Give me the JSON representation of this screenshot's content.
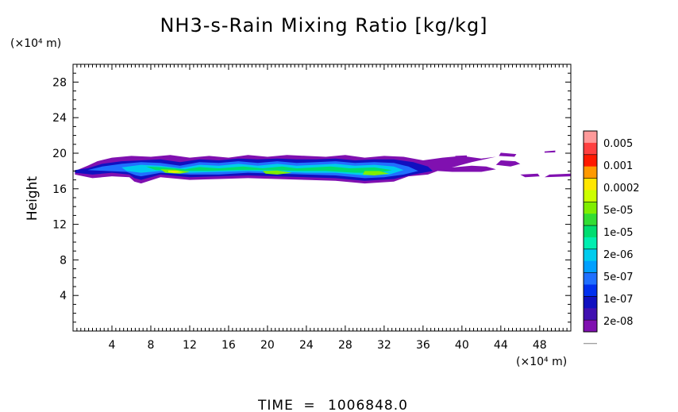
{
  "chart_data": {
    "type": "heatmap",
    "title": "NH3-s-Rain Mixing Ratio [kg/kg]",
    "xlabel": "",
    "ylabel": "Height",
    "x_unit": "(×10⁴ m)",
    "y_unit": "(×10⁴ m)",
    "xlim": [
      0,
      51.2
    ],
    "ylim": [
      0,
      30
    ],
    "x_ticks": [
      4,
      8,
      12,
      16,
      20,
      24,
      28,
      32,
      36,
      40,
      44,
      48
    ],
    "y_ticks": [
      4,
      8,
      12,
      16,
      20,
      24,
      28
    ],
    "grid": false,
    "legend": {
      "placement": "right",
      "labels": [
        "0.005",
        "0.001",
        "0.0002",
        "5e-05",
        "1e-05",
        "2e-06",
        "5e-07",
        "1e-07",
        "2e-08"
      ],
      "colors": [
        "#ff9a9a",
        "#ff4040",
        "#ff1a00",
        "#ff9900",
        "#ffe600",
        "#ccff00",
        "#80ee00",
        "#33dd33",
        "#00dd70",
        "#00eeb0",
        "#00ccee",
        "#00a0ff",
        "#2070ff",
        "#0030ee",
        "#1010c0",
        "#4010b0",
        "#8010b0"
      ]
    },
    "regions": [
      {
        "level": 0,
        "points": [
          [
            0.2,
            18.0
          ],
          [
            1.5,
            18.6
          ],
          [
            2.5,
            19.1
          ],
          [
            4,
            19.5
          ],
          [
            6,
            19.7
          ],
          [
            8,
            19.6
          ],
          [
            10,
            19.8
          ],
          [
            12,
            19.5
          ],
          [
            14,
            19.7
          ],
          [
            16,
            19.5
          ],
          [
            18,
            19.8
          ],
          [
            20,
            19.6
          ],
          [
            22,
            19.8
          ],
          [
            24,
            19.7
          ],
          [
            26,
            19.6
          ],
          [
            28,
            19.8
          ],
          [
            30,
            19.5
          ],
          [
            32,
            19.7
          ],
          [
            34,
            19.6
          ],
          [
            36,
            19.2
          ],
          [
            38,
            19.5
          ],
          [
            40,
            19.7
          ],
          [
            42,
            19.4
          ],
          [
            43.5,
            19.6
          ],
          [
            41,
            19.0
          ],
          [
            39,
            18.4
          ],
          [
            37.5,
            18.0
          ],
          [
            36.5,
            17.6
          ],
          [
            34.5,
            17.4
          ],
          [
            33,
            16.8
          ],
          [
            30,
            16.6
          ],
          [
            27,
            16.9
          ],
          [
            24,
            17.0
          ],
          [
            21,
            17.1
          ],
          [
            18,
            17.2
          ],
          [
            15,
            17.1
          ],
          [
            12,
            17.0
          ],
          [
            9,
            17.3
          ],
          [
            7,
            16.6
          ],
          [
            6.3,
            16.8
          ],
          [
            5.8,
            17.3
          ],
          [
            4,
            17.4
          ],
          [
            2,
            17.2
          ],
          [
            0.2,
            17.6
          ]
        ]
      },
      {
        "level": 0,
        "points": [
          [
            44,
            19.2
          ],
          [
            45.5,
            19.1
          ],
          [
            46,
            18.8
          ],
          [
            45,
            18.5
          ],
          [
            43.5,
            18.7
          ]
        ]
      },
      {
        "level": 0,
        "points": [
          [
            38,
            18.3
          ],
          [
            41,
            18.6
          ],
          [
            42.5,
            18.5
          ],
          [
            43.5,
            18.2
          ],
          [
            42,
            17.9
          ],
          [
            39,
            17.9
          ],
          [
            37.5,
            18.0
          ]
        ]
      },
      {
        "level": 0,
        "points": [
          [
            49,
            17.6
          ],
          [
            51.2,
            17.7
          ],
          [
            51.2,
            17.4
          ],
          [
            48.5,
            17.3
          ]
        ]
      },
      {
        "level": 0,
        "points": [
          [
            46,
            17.6
          ],
          [
            47.8,
            17.7
          ],
          [
            48,
            17.4
          ],
          [
            46.5,
            17.3
          ]
        ]
      },
      {
        "level": 0,
        "points": [
          [
            48.5,
            20.2
          ],
          [
            49.6,
            20.3
          ],
          [
            49.6,
            20.1
          ],
          [
            48.5,
            20.05
          ]
        ]
      },
      {
        "level": 0,
        "points": [
          [
            39.3,
            19.7
          ],
          [
            40.5,
            19.75
          ],
          [
            40.5,
            19.5
          ],
          [
            39.4,
            19.5
          ]
        ]
      },
      {
        "level": 0,
        "points": [
          [
            44,
            20.05
          ],
          [
            45.6,
            19.9
          ],
          [
            45.4,
            19.6
          ],
          [
            43.8,
            19.7
          ]
        ]
      },
      {
        "level": 2,
        "points": [
          [
            0.2,
            18.1
          ],
          [
            1.5,
            18.3
          ],
          [
            3,
            18.8
          ],
          [
            5,
            19.1
          ],
          [
            7,
            19.2
          ],
          [
            9,
            19.3
          ],
          [
            11,
            19.0
          ],
          [
            13,
            19.3
          ],
          [
            15,
            19.2
          ],
          [
            17,
            19.4
          ],
          [
            19,
            19.3
          ],
          [
            21,
            19.4
          ],
          [
            23,
            19.3
          ],
          [
            25,
            19.3
          ],
          [
            27,
            19.4
          ],
          [
            29,
            19.2
          ],
          [
            31,
            19.3
          ],
          [
            33,
            19.3
          ],
          [
            35,
            19.0
          ],
          [
            36.5,
            18.5
          ],
          [
            37,
            18.0
          ],
          [
            35,
            17.6
          ],
          [
            33,
            17.1
          ],
          [
            30,
            16.9
          ],
          [
            27,
            17.2
          ],
          [
            24,
            17.3
          ],
          [
            21,
            17.4
          ],
          [
            18,
            17.5
          ],
          [
            15,
            17.4
          ],
          [
            12,
            17.3
          ],
          [
            9,
            17.6
          ],
          [
            7,
            17.0
          ],
          [
            6.3,
            17.2
          ],
          [
            5.8,
            17.6
          ],
          [
            4,
            17.8
          ],
          [
            2,
            17.6
          ],
          [
            0.2,
            17.8
          ]
        ]
      },
      {
        "level": 4,
        "points": [
          [
            1.5,
            18.1
          ],
          [
            3,
            18.5
          ],
          [
            5,
            18.8
          ],
          [
            7,
            19.0
          ],
          [
            9,
            18.9
          ],
          [
            11,
            18.6
          ],
          [
            13,
            19.0
          ],
          [
            15,
            18.9
          ],
          [
            17,
            19.1
          ],
          [
            19,
            18.9
          ],
          [
            21,
            19.1
          ],
          [
            23,
            18.9
          ],
          [
            25,
            19.0
          ],
          [
            27,
            19.1
          ],
          [
            29,
            18.9
          ],
          [
            31,
            19.0
          ],
          [
            33,
            18.9
          ],
          [
            34.5,
            18.5
          ],
          [
            35.5,
            18.0
          ],
          [
            34,
            17.6
          ],
          [
            32,
            17.3
          ],
          [
            30,
            17.2
          ],
          [
            27,
            17.5
          ],
          [
            24,
            17.6
          ],
          [
            21,
            17.7
          ],
          [
            18,
            17.8
          ],
          [
            15,
            17.6
          ],
          [
            12,
            17.6
          ],
          [
            9,
            17.8
          ],
          [
            7,
            17.4
          ],
          [
            6.5,
            17.5
          ],
          [
            5.5,
            17.9
          ],
          [
            3.5,
            18.0
          ]
        ]
      },
      {
        "level": 6,
        "points": [
          [
            5,
            18.4
          ],
          [
            7,
            18.7
          ],
          [
            9,
            18.6
          ],
          [
            11,
            18.3
          ],
          [
            13,
            18.7
          ],
          [
            15,
            18.6
          ],
          [
            17,
            18.8
          ],
          [
            19,
            18.6
          ],
          [
            21,
            18.8
          ],
          [
            23,
            18.6
          ],
          [
            25,
            18.7
          ],
          [
            27,
            18.8
          ],
          [
            29,
            18.6
          ],
          [
            31,
            18.7
          ],
          [
            33,
            18.5
          ],
          [
            34,
            18.1
          ],
          [
            32.5,
            17.6
          ],
          [
            30,
            17.5
          ],
          [
            27,
            17.8
          ],
          [
            24,
            17.8
          ],
          [
            21,
            17.9
          ],
          [
            18,
            18.0
          ],
          [
            15,
            17.9
          ],
          [
            12,
            17.8
          ],
          [
            9,
            18.0
          ],
          [
            7,
            17.8
          ],
          [
            5.5,
            18.0
          ]
        ]
      },
      {
        "level": 8,
        "points": [
          [
            7.5,
            18.5
          ],
          [
            9.5,
            18.4
          ],
          [
            11.5,
            18.2
          ],
          [
            13,
            18.45
          ],
          [
            15,
            18.3
          ],
          [
            17.5,
            18.5
          ],
          [
            19.5,
            18.3
          ],
          [
            21.5,
            18.5
          ],
          [
            23,
            18.3
          ],
          [
            26.5,
            18.5
          ],
          [
            28.5,
            18.3
          ],
          [
            31,
            18.4
          ],
          [
            32.8,
            18.1
          ],
          [
            31.5,
            17.8
          ],
          [
            29,
            17.8
          ],
          [
            26,
            18.0
          ],
          [
            23,
            18.0
          ],
          [
            20,
            18.1
          ],
          [
            17,
            18.1
          ],
          [
            14,
            18.0
          ],
          [
            11,
            18.0
          ],
          [
            8.5,
            18.1
          ]
        ]
      },
      {
        "level": 10,
        "points": [
          [
            9,
            18.2
          ],
          [
            10.5,
            18.15
          ],
          [
            12,
            17.9
          ],
          [
            11,
            17.7
          ],
          [
            9.5,
            17.8
          ]
        ]
      },
      {
        "level": 10,
        "points": [
          [
            19.5,
            18.0
          ],
          [
            21,
            18.05
          ],
          [
            22.5,
            17.8
          ],
          [
            21,
            17.6
          ],
          [
            19.8,
            17.7
          ]
        ]
      },
      {
        "level": 10,
        "points": [
          [
            30,
            18.0
          ],
          [
            31.5,
            18.0
          ],
          [
            32.5,
            17.7
          ],
          [
            31,
            17.5
          ],
          [
            29.8,
            17.6
          ]
        ]
      },
      {
        "level": 11,
        "points": [
          [
            9.8,
            18.05
          ],
          [
            10.8,
            18.0
          ],
          [
            11.3,
            17.85
          ],
          [
            10.4,
            17.78
          ],
          [
            9.8,
            17.85
          ]
        ]
      },
      {
        "level": 12,
        "points": [
          [
            10.0,
            18.0
          ],
          [
            10.7,
            17.97
          ],
          [
            10.9,
            17.85
          ],
          [
            10.3,
            17.82
          ]
        ]
      }
    ]
  },
  "footer": {
    "label": "TIME",
    "equals": "=",
    "value": "1006848.0"
  }
}
